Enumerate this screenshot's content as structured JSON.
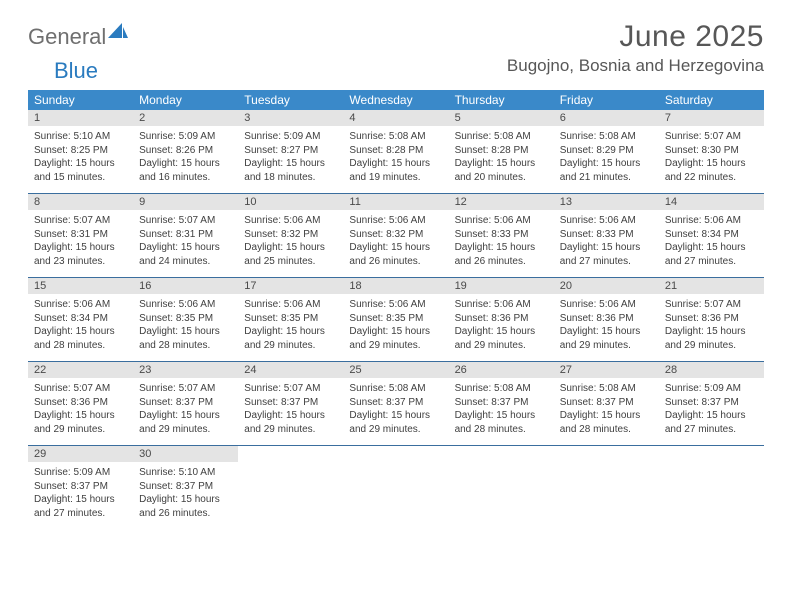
{
  "logo": {
    "text1": "General",
    "text2": "Blue"
  },
  "title": "June 2025",
  "location": "Bugojno, Bosnia and Herzegovina",
  "colors": {
    "header_bg": "#3a89c9",
    "header_text": "#ffffff",
    "daynum_bg": "#e4e4e4",
    "sep_line": "#3a6e9e",
    "body_text": "#3f3f3f",
    "title_text": "#575757",
    "logo_gray": "#6f6f6f",
    "logo_blue": "#2a7bbf"
  },
  "dow": [
    "Sunday",
    "Monday",
    "Tuesday",
    "Wednesday",
    "Thursday",
    "Friday",
    "Saturday"
  ],
  "weeks": [
    [
      {
        "n": "1",
        "sr": "5:10 AM",
        "ss": "8:25 PM",
        "dl": "15 hours and 15 minutes."
      },
      {
        "n": "2",
        "sr": "5:09 AM",
        "ss": "8:26 PM",
        "dl": "15 hours and 16 minutes."
      },
      {
        "n": "3",
        "sr": "5:09 AM",
        "ss": "8:27 PM",
        "dl": "15 hours and 18 minutes."
      },
      {
        "n": "4",
        "sr": "5:08 AM",
        "ss": "8:28 PM",
        "dl": "15 hours and 19 minutes."
      },
      {
        "n": "5",
        "sr": "5:08 AM",
        "ss": "8:28 PM",
        "dl": "15 hours and 20 minutes."
      },
      {
        "n": "6",
        "sr": "5:08 AM",
        "ss": "8:29 PM",
        "dl": "15 hours and 21 minutes."
      },
      {
        "n": "7",
        "sr": "5:07 AM",
        "ss": "8:30 PM",
        "dl": "15 hours and 22 minutes."
      }
    ],
    [
      {
        "n": "8",
        "sr": "5:07 AM",
        "ss": "8:31 PM",
        "dl": "15 hours and 23 minutes."
      },
      {
        "n": "9",
        "sr": "5:07 AM",
        "ss": "8:31 PM",
        "dl": "15 hours and 24 minutes."
      },
      {
        "n": "10",
        "sr": "5:06 AM",
        "ss": "8:32 PM",
        "dl": "15 hours and 25 minutes."
      },
      {
        "n": "11",
        "sr": "5:06 AM",
        "ss": "8:32 PM",
        "dl": "15 hours and 26 minutes."
      },
      {
        "n": "12",
        "sr": "5:06 AM",
        "ss": "8:33 PM",
        "dl": "15 hours and 26 minutes."
      },
      {
        "n": "13",
        "sr": "5:06 AM",
        "ss": "8:33 PM",
        "dl": "15 hours and 27 minutes."
      },
      {
        "n": "14",
        "sr": "5:06 AM",
        "ss": "8:34 PM",
        "dl": "15 hours and 27 minutes."
      }
    ],
    [
      {
        "n": "15",
        "sr": "5:06 AM",
        "ss": "8:34 PM",
        "dl": "15 hours and 28 minutes."
      },
      {
        "n": "16",
        "sr": "5:06 AM",
        "ss": "8:35 PM",
        "dl": "15 hours and 28 minutes."
      },
      {
        "n": "17",
        "sr": "5:06 AM",
        "ss": "8:35 PM",
        "dl": "15 hours and 29 minutes."
      },
      {
        "n": "18",
        "sr": "5:06 AM",
        "ss": "8:35 PM",
        "dl": "15 hours and 29 minutes."
      },
      {
        "n": "19",
        "sr": "5:06 AM",
        "ss": "8:36 PM",
        "dl": "15 hours and 29 minutes."
      },
      {
        "n": "20",
        "sr": "5:06 AM",
        "ss": "8:36 PM",
        "dl": "15 hours and 29 minutes."
      },
      {
        "n": "21",
        "sr": "5:07 AM",
        "ss": "8:36 PM",
        "dl": "15 hours and 29 minutes."
      }
    ],
    [
      {
        "n": "22",
        "sr": "5:07 AM",
        "ss": "8:36 PM",
        "dl": "15 hours and 29 minutes."
      },
      {
        "n": "23",
        "sr": "5:07 AM",
        "ss": "8:37 PM",
        "dl": "15 hours and 29 minutes."
      },
      {
        "n": "24",
        "sr": "5:07 AM",
        "ss": "8:37 PM",
        "dl": "15 hours and 29 minutes."
      },
      {
        "n": "25",
        "sr": "5:08 AM",
        "ss": "8:37 PM",
        "dl": "15 hours and 29 minutes."
      },
      {
        "n": "26",
        "sr": "5:08 AM",
        "ss": "8:37 PM",
        "dl": "15 hours and 28 minutes."
      },
      {
        "n": "27",
        "sr": "5:08 AM",
        "ss": "8:37 PM",
        "dl": "15 hours and 28 minutes."
      },
      {
        "n": "28",
        "sr": "5:09 AM",
        "ss": "8:37 PM",
        "dl": "15 hours and 27 minutes."
      }
    ],
    [
      {
        "n": "29",
        "sr": "5:09 AM",
        "ss": "8:37 PM",
        "dl": "15 hours and 27 minutes."
      },
      {
        "n": "30",
        "sr": "5:10 AM",
        "ss": "8:37 PM",
        "dl": "15 hours and 26 minutes."
      },
      null,
      null,
      null,
      null,
      null
    ]
  ],
  "labels": {
    "sunrise": "Sunrise:",
    "sunset": "Sunset:",
    "daylight": "Daylight:"
  }
}
